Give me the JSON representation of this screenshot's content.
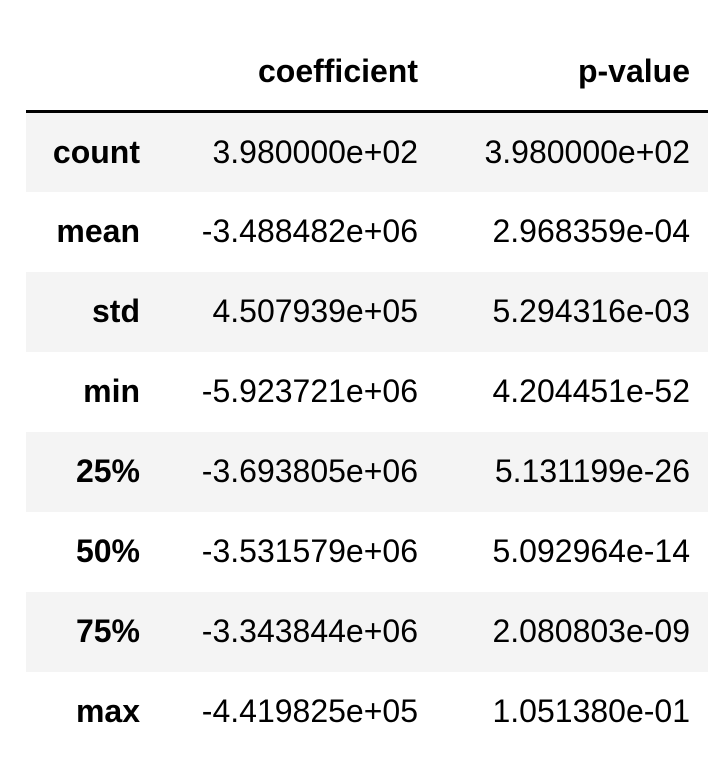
{
  "table": {
    "index_header": "",
    "columns": [
      "coefficient",
      "p-value"
    ],
    "rows": [
      {
        "label": "count",
        "coefficient": "3.980000e+02",
        "p_value": "3.980000e+02"
      },
      {
        "label": "mean",
        "coefficient": "-3.488482e+06",
        "p_value": "2.968359e-04"
      },
      {
        "label": "std",
        "coefficient": "4.507939e+05",
        "p_value": "5.294316e-03"
      },
      {
        "label": "min",
        "coefficient": "-5.923721e+06",
        "p_value": "4.204451e-52"
      },
      {
        "label": "25%",
        "coefficient": "-3.693805e+06",
        "p_value": "5.131199e-26"
      },
      {
        "label": "50%",
        "coefficient": "-3.531579e+06",
        "p_value": "5.092964e-14"
      },
      {
        "label": "75%",
        "coefficient": "-3.343844e+06",
        "p_value": "2.080803e-09"
      },
      {
        "label": "max",
        "coefficient": "-4.419825e+05",
        "p_value": "1.051380e-01"
      }
    ]
  },
  "colors": {
    "row_stripe": "#f4f4f4",
    "row_plain": "#ffffff",
    "text": "#000000",
    "header_rule": "#000000"
  }
}
